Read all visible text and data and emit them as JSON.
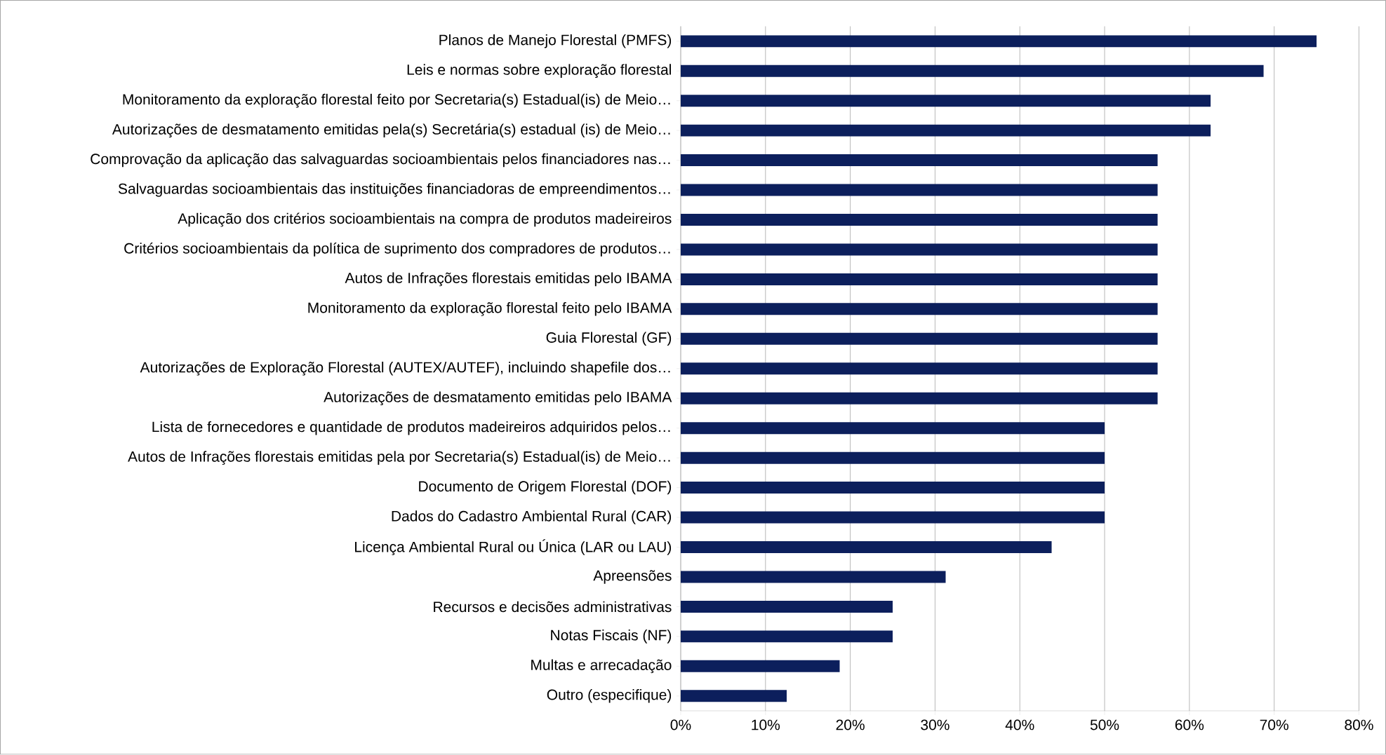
{
  "chart_data": {
    "type": "bar",
    "orientation": "horizontal",
    "categories": [
      "Planos de Manejo Florestal (PMFS)",
      "Leis e normas sobre exploração florestal",
      "Monitoramento da exploração florestal feito por Secretaria(s) Estadual(is) de Meio…",
      "Autorizações de desmatamento emitidas pela(s) Secretária(s) estadual (is) de Meio…",
      "Comprovação da aplicação das salvaguardas socioambientais pelos financiadores nas…",
      "Salvaguardas socioambientais das instituições financiadoras de empreendimentos…",
      "Aplicação dos critérios socioambientais na compra de produtos madeireiros",
      "Critérios socioambientais da política de suprimento dos compradores de produtos…",
      "Autos de Infrações florestais emitidas pelo IBAMA",
      "Monitoramento da exploração florestal feito pelo IBAMA",
      "Guia Florestal (GF)",
      "Autorizações de Exploração Florestal (AUTEX/AUTEF), incluindo shapefile dos…",
      "Autorizações de desmatamento emitidas pelo IBAMA",
      "Lista de fornecedores e quantidade de produtos madeireiros adquiridos pelos…",
      "Autos de Infrações florestais emitidas pela por Secretaria(s) Estadual(is) de Meio…",
      "Documento de Origem Florestal (DOF)",
      "Dados do Cadastro Ambiental Rural (CAR)",
      "Licença Ambiental Rural ou Única (LAR ou LAU)",
      "Apreensões",
      "Recursos e decisões administrativas",
      "Notas Fiscais (NF)",
      "Multas e arrecadação",
      "Outro (especifique)"
    ],
    "values": [
      75,
      68.75,
      62.5,
      62.5,
      56.25,
      56.25,
      56.25,
      56.25,
      56.25,
      56.25,
      56.25,
      56.25,
      56.25,
      50,
      50,
      50,
      50,
      43.75,
      31.25,
      25,
      25,
      18.75,
      12.5
    ],
    "color": "#0c1f5c",
    "xlim": [
      0,
      80
    ],
    "xticks": [
      {
        "value": 0,
        "label": "0%"
      },
      {
        "value": 10,
        "label": "10%"
      },
      {
        "value": 20,
        "label": "20%"
      },
      {
        "value": 30,
        "label": "30%"
      },
      {
        "value": 40,
        "label": "40%"
      },
      {
        "value": 50,
        "label": "50%"
      },
      {
        "value": 60,
        "label": "60%"
      },
      {
        "value": 70,
        "label": "70%"
      },
      {
        "value": 80,
        "label": "80%"
      }
    ],
    "grid": "x"
  }
}
